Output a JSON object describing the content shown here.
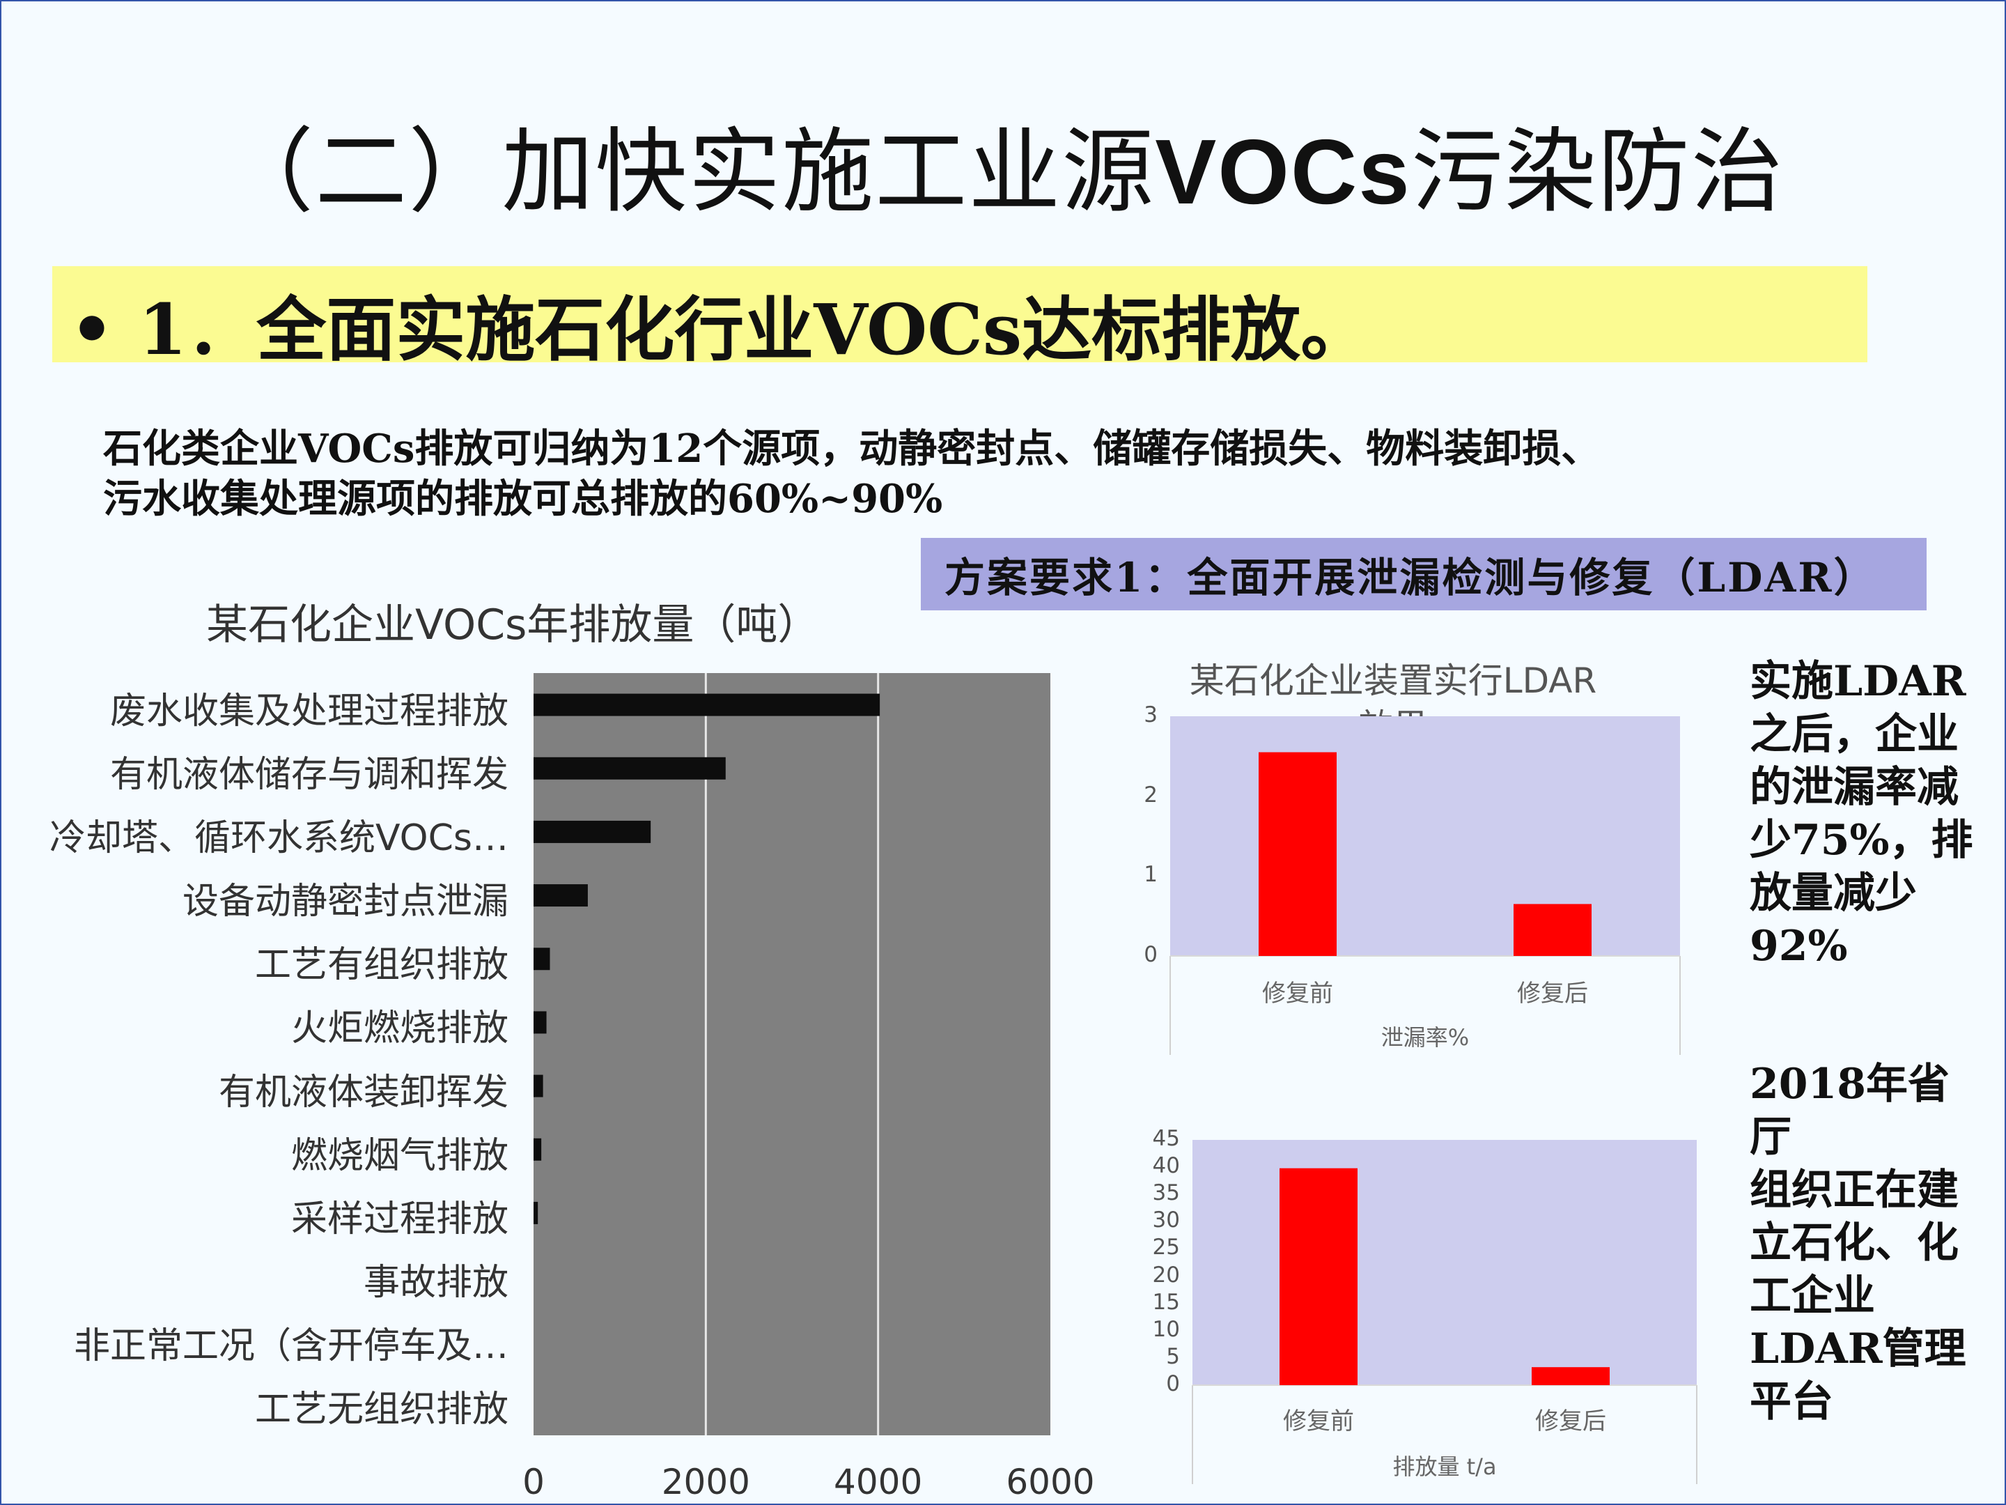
{
  "header": {
    "title_pre": "（二）加快实施工业源",
    "title_latin": "VOCs",
    "title_post": "污染防治",
    "subtitle": "• 1．全面实施石化行业VOCs达标排放。"
  },
  "intro": {
    "line1": "石化类企业VOCs排放可归纳为12个源项，动静密封点、储罐存储损失、物料装卸损、",
    "line2": "污水收集处理源项的排放可总排放的60%~90%"
  },
  "plan": {
    "text": "方案要求1：全面开展泄漏检测与修复（LDAR）"
  },
  "notes": {
    "note1": [
      "实施LDAR",
      "之后，企业",
      "的泄漏率减",
      "少75%，排",
      "放量减少",
      "92%"
    ],
    "note2": [
      "2018年省厅",
      "组织正在建",
      "立石化、化",
      "工企业",
      "LDAR管理",
      "平台"
    ]
  },
  "colors": {
    "bar_dark": "#0d0d0d",
    "plot_gray": "#808080",
    "bar_red": "#ff0000",
    "plot_lavender": "#cdcdee"
  },
  "chart_data": [
    {
      "type": "bar",
      "orientation": "horizontal",
      "title": "某石化企业VOCs年排放量（吨）",
      "categories": [
        "废水收集及处理过程排放",
        "有机液体储存与调和挥发",
        "冷却塔、循环水系统VOCs…",
        "设备动静密封点泄漏",
        "工艺有组织排放",
        "火炬燃烧排放",
        "有机液体装卸挥发",
        "燃烧烟气排放",
        "采样过程排放",
        "事故排放",
        "非正常工况（含开停车及…",
        "工艺无组织排放"
      ],
      "values": [
        4020,
        2230,
        1360,
        630,
        190,
        150,
        110,
        90,
        50,
        0,
        0,
        0
      ],
      "xlim": [
        0,
        6000
      ],
      "xticks": [
        "0",
        "2000",
        "4000",
        "6000"
      ],
      "grid": true
    },
    {
      "type": "bar",
      "title": "某石化企业装置实行LDAR效果",
      "title_lines": [
        "某石化企业装置实行LDAR",
        "效果"
      ],
      "categories": [
        "修复前",
        "修复后"
      ],
      "values": [
        2.55,
        0.65
      ],
      "xlabel": "泄漏率%",
      "ylim": [
        0,
        3
      ],
      "yticks": [
        "0",
        "1",
        "2",
        "3"
      ]
    },
    {
      "type": "bar",
      "title": "",
      "categories": [
        "修复前",
        "修复后"
      ],
      "values": [
        39.8,
        3.3
      ],
      "xlabel": "排放量 t/a",
      "ylim": [
        0,
        45
      ],
      "yticks": [
        "0",
        "5",
        "10",
        "15",
        "20",
        "25",
        "30",
        "35",
        "40",
        "45"
      ]
    }
  ]
}
